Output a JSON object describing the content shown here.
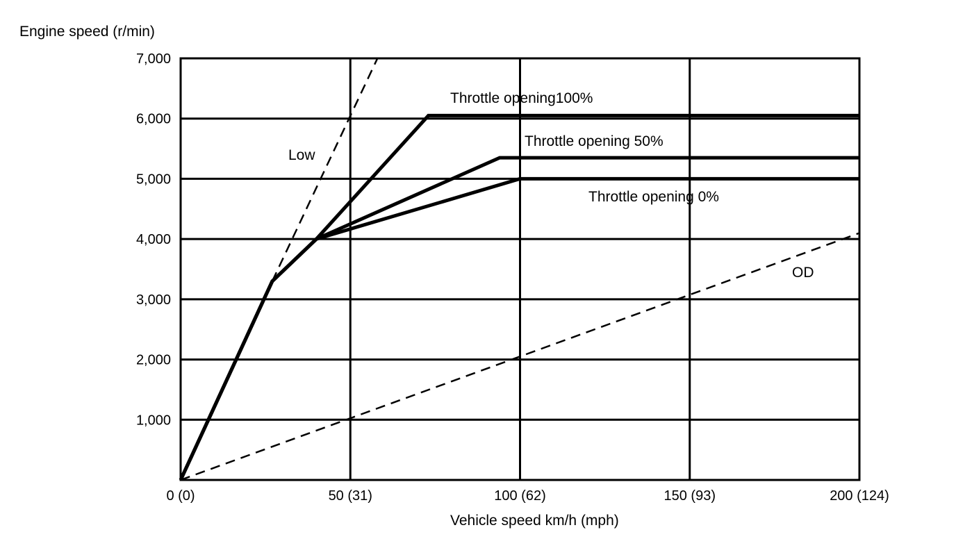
{
  "chart_data": {
    "type": "line",
    "ylabel": "Engine speed (r/min)",
    "xlabel": "Vehicle speed  km/h (mph)",
    "xlim": [
      0,
      200
    ],
    "ylim": [
      0,
      7000
    ],
    "grid": true,
    "x_ticks": [
      {
        "value": 0,
        "label": "0 (0)"
      },
      {
        "value": 50,
        "label": "50 (31)"
      },
      {
        "value": 100,
        "label": "100 (62)"
      },
      {
        "value": 150,
        "label": "150 (93)"
      },
      {
        "value": 200,
        "label": "200 (124)"
      }
    ],
    "y_ticks": [
      {
        "value": 1000,
        "label": "1,000"
      },
      {
        "value": 2000,
        "label": "2,000"
      },
      {
        "value": 3000,
        "label": "3,000"
      },
      {
        "value": 4000,
        "label": "4,000"
      },
      {
        "value": 5000,
        "label": "5,000"
      },
      {
        "value": 6000,
        "label": "6,000"
      },
      {
        "value": 7000,
        "label": "7,000"
      }
    ],
    "series": [
      {
        "name": "Throttle opening100%",
        "style": "solid",
        "points": [
          [
            0,
            0
          ],
          [
            27,
            3300
          ],
          [
            40,
            4000
          ],
          [
            73,
            6050
          ],
          [
            200,
            6050
          ]
        ]
      },
      {
        "name": "Throttle opening 50%",
        "style": "solid",
        "points": [
          [
            0,
            0
          ],
          [
            27,
            3300
          ],
          [
            40,
            4000
          ],
          [
            94,
            5350
          ],
          [
            200,
            5350
          ]
        ]
      },
      {
        "name": "Throttle opening 0%",
        "style": "solid",
        "points": [
          [
            0,
            0
          ],
          [
            27,
            3300
          ],
          [
            40,
            4000
          ],
          [
            100,
            5000
          ],
          [
            200,
            5000
          ]
        ]
      },
      {
        "name": "Low",
        "style": "dashed",
        "points": [
          [
            27,
            3300
          ],
          [
            58,
            7000
          ]
        ]
      },
      {
        "name": "OD",
        "style": "dashed",
        "points": [
          [
            0,
            0
          ],
          [
            200,
            4100
          ]
        ]
      }
    ]
  }
}
